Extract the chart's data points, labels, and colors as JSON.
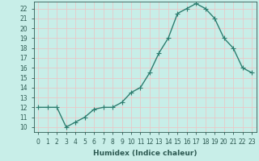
{
  "x": [
    0,
    1,
    2,
    3,
    4,
    5,
    6,
    7,
    8,
    9,
    10,
    11,
    12,
    13,
    14,
    15,
    16,
    17,
    18,
    19,
    20,
    21,
    22,
    23
  ],
  "y": [
    12,
    12,
    12,
    10,
    10.5,
    11,
    11.8,
    12,
    12,
    12.5,
    13.5,
    14,
    15.5,
    17.5,
    19,
    21.5,
    22,
    22.5,
    22,
    21,
    19,
    18,
    16,
    15.5
  ],
  "line_color": "#2d7d6f",
  "marker_color": "#2d7d6f",
  "bg_color": "#c8eee8",
  "grid_color": "#e8c8c8",
  "title": "",
  "xlabel": "Humidex (Indice chaleur)",
  "ylabel": "",
  "xlim": [
    -0.5,
    23.5
  ],
  "ylim": [
    9.5,
    22.7
  ],
  "yticks": [
    10,
    11,
    12,
    13,
    14,
    15,
    16,
    17,
    18,
    19,
    20,
    21,
    22
  ],
  "xticks": [
    0,
    1,
    2,
    3,
    4,
    5,
    6,
    7,
    8,
    9,
    10,
    11,
    12,
    13,
    14,
    15,
    16,
    17,
    18,
    19,
    20,
    21,
    22,
    23
  ],
  "marker_size": 2.5,
  "line_width": 1.0,
  "xlabel_fontsize": 6.5,
  "tick_fontsize": 5.5,
  "tick_color": "#2d5a52",
  "label_color": "#2d5a52"
}
